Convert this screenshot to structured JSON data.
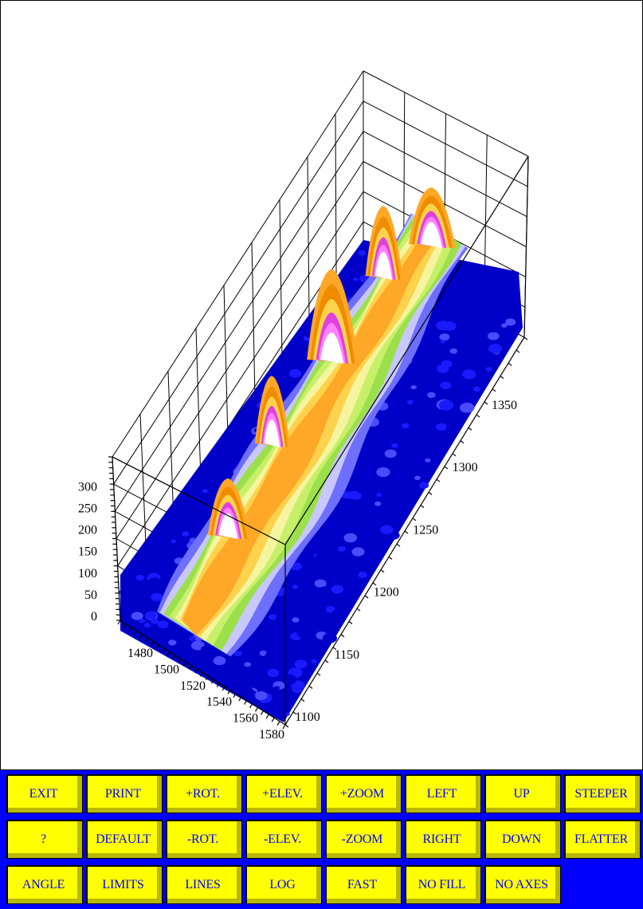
{
  "plot": {
    "z_ticks": [
      "0",
      "50",
      "100",
      "150",
      "200",
      "250",
      "300"
    ],
    "x_ticks": [
      "1480",
      "1500",
      "1520",
      "1540",
      "1560",
      "1580"
    ],
    "y_ticks": [
      "1100",
      "1150",
      "1200",
      "1250",
      "1300",
      "1350"
    ],
    "colormap": [
      "#0000c8",
      "#1a1aff",
      "#6e6eff",
      "#c8c8ff",
      "#9be04b",
      "#c8ef6a",
      "#f5f5a0",
      "#ffd24d",
      "#ffa726",
      "#f08c00",
      "#e040e0",
      "#ffffff"
    ]
  },
  "toolbar": {
    "rows": [
      [
        "EXIT",
        "PRINT",
        "+ROT.",
        "+ELEV.",
        "+ZOOM",
        "LEFT",
        "UP",
        "STEEPER"
      ],
      [
        "?",
        "DEFAULT",
        "-ROT.",
        "-ELEV.",
        "-ZOOM",
        "RIGHT",
        "DOWN",
        "FLATTER"
      ],
      [
        "ANGLE",
        "LIMITS",
        "LINES",
        "LOG",
        "FAST",
        "NO FILL",
        "NO AXES"
      ]
    ]
  }
}
